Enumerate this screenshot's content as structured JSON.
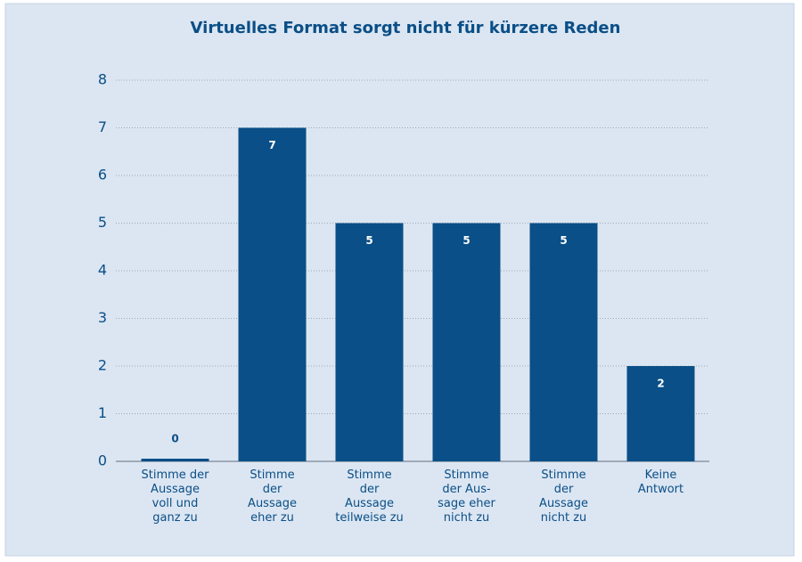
{
  "chart_data": {
    "type": "bar",
    "title": "Virtuelles Format sorgt nicht für kürzere Reden",
    "categories": [
      "Stimme der\nAussage\nvoll und\nganz zu",
      "Stimme\nder\nAussage\neher zu",
      "Stimme\nder\nAussage\nteilweise zu",
      "Stimme\nder Aus-\nsage eher\nnicht zu",
      "Stimme\nder\nAussage\nnicht zu",
      "Keine\nAntwort"
    ],
    "values": [
      0,
      7,
      5,
      5,
      5,
      2
    ],
    "color": "#0a4f87",
    "ylim": [
      0,
      8
    ],
    "yticks": [
      0,
      1,
      2,
      3,
      4,
      5,
      6,
      7,
      8
    ],
    "grid": true
  }
}
